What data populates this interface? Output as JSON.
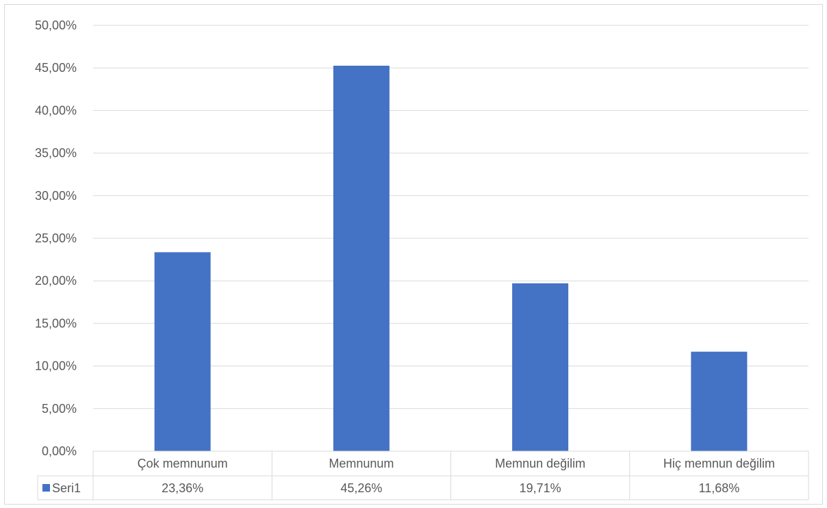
{
  "chart_data": {
    "type": "bar",
    "categories": [
      "Çok memnunum",
      "Memnunum",
      "Memnun değilim",
      "Hiç memnun değilim"
    ],
    "series": [
      {
        "name": "Seri1",
        "values": [
          23.36,
          45.26,
          19.71,
          11.68
        ],
        "color": "#4472c4"
      }
    ],
    "data_labels": [
      "23,36%",
      "45,26%",
      "19,71%",
      "11,68%"
    ],
    "y_ticks": [
      "0,00%",
      "5,00%",
      "10,00%",
      "15,00%",
      "20,00%",
      "25,00%",
      "30,00%",
      "35,00%",
      "40,00%",
      "45,00%",
      "50,00%"
    ],
    "ylim": [
      0,
      50
    ],
    "grid": true,
    "legend_placement": "data-table",
    "colors": {
      "bar": "#4472c4",
      "grid": "#d9d9d9",
      "text": "#595959"
    }
  }
}
